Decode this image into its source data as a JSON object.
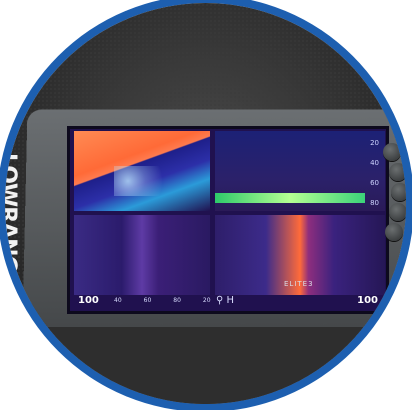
{
  "brand": "LOWRANCE",
  "model": "ELITE3",
  "bottom_left_value": "100",
  "bottom_right_value": "100",
  "scale_ticks": [
    "20",
    "40",
    "60",
    "80"
  ],
  "bottom_ticks": [
    "40",
    "60",
    "80",
    "20"
  ],
  "symbols": "⚲ H",
  "colors": {
    "accent_ring": "#1d5fb0",
    "screen_bg": "#20114f",
    "orange": "#ff6a37",
    "green": "#3bd279"
  }
}
